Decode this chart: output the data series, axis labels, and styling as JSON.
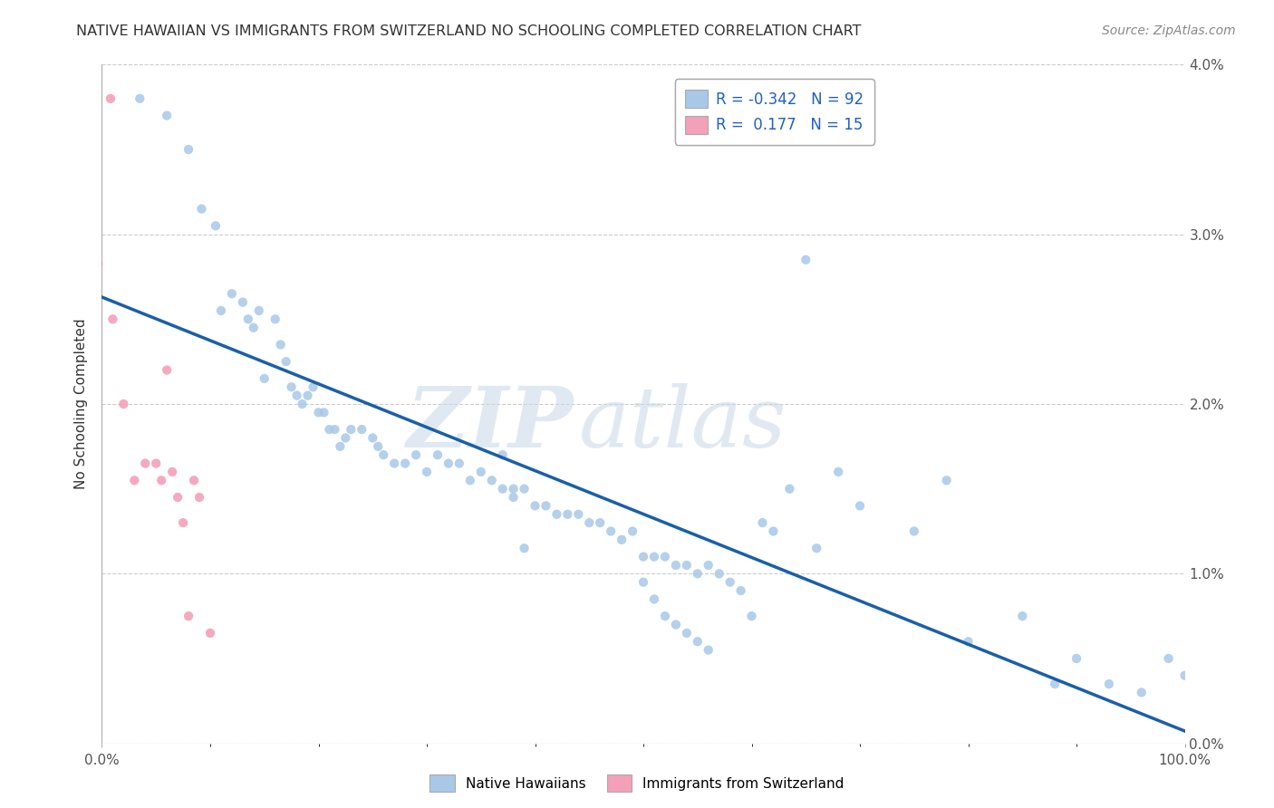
{
  "title": "NATIVE HAWAIIAN VS IMMIGRANTS FROM SWITZERLAND NO SCHOOLING COMPLETED CORRELATION CHART",
  "source": "Source: ZipAtlas.com",
  "ylabel": "No Schooling Completed",
  "legend_label1": "Native Hawaiians",
  "legend_label2": "Immigrants from Switzerland",
  "R1": -0.342,
  "N1": 92,
  "R2": 0.177,
  "N2": 15,
  "color_blue": "#a8c8e8",
  "color_pink": "#f4a0b8",
  "color_trend_blue": "#1a5fa8",
  "color_trend_pink": "#e08090",
  "blue_x": [
    3.5,
    6.0,
    8.0,
    9.2,
    10.5,
    11.0,
    12.0,
    13.0,
    13.5,
    14.0,
    14.5,
    15.0,
    16.0,
    16.5,
    17.0,
    17.5,
    18.0,
    18.5,
    19.0,
    19.5,
    20.0,
    20.5,
    21.0,
    21.5,
    22.0,
    22.5,
    23.0,
    24.0,
    25.0,
    25.5,
    26.0,
    27.0,
    28.0,
    29.0,
    30.0,
    31.0,
    32.0,
    33.0,
    34.0,
    35.0,
    36.0,
    37.0,
    38.0,
    39.0,
    40.0,
    41.0,
    42.0,
    43.0,
    44.0,
    45.0,
    46.0,
    47.0,
    48.0,
    49.0,
    50.0,
    51.0,
    52.0,
    53.0,
    54.0,
    55.0,
    56.0,
    57.0,
    58.0,
    59.0,
    60.0,
    61.0,
    62.0,
    63.5,
    65.0,
    66.0,
    68.0,
    70.0,
    75.0,
    78.0,
    80.0,
    85.0,
    88.0,
    90.0,
    93.0,
    96.0,
    98.5,
    100.0,
    37.0,
    38.0,
    39.0,
    50.0,
    51.0,
    52.0,
    53.0,
    54.0,
    55.0,
    56.0
  ],
  "blue_y": [
    3.8,
    3.7,
    3.5,
    3.15,
    3.05,
    2.55,
    2.65,
    2.6,
    2.5,
    2.45,
    2.55,
    2.15,
    2.5,
    2.35,
    2.25,
    2.1,
    2.05,
    2.0,
    2.05,
    2.1,
    1.95,
    1.95,
    1.85,
    1.85,
    1.75,
    1.8,
    1.85,
    1.85,
    1.8,
    1.75,
    1.7,
    1.65,
    1.65,
    1.7,
    1.6,
    1.7,
    1.65,
    1.65,
    1.55,
    1.6,
    1.55,
    1.5,
    1.5,
    1.5,
    1.4,
    1.4,
    1.35,
    1.35,
    1.35,
    1.3,
    1.3,
    1.25,
    1.2,
    1.25,
    1.1,
    1.1,
    1.1,
    1.05,
    1.05,
    1.0,
    1.05,
    1.0,
    0.95,
    0.9,
    0.75,
    1.3,
    1.25,
    1.5,
    2.85,
    1.15,
    1.6,
    1.4,
    1.25,
    1.55,
    0.6,
    0.75,
    0.35,
    0.5,
    0.35,
    0.3,
    0.5,
    0.4,
    1.7,
    1.45,
    1.15,
    0.95,
    0.85,
    0.75,
    0.7,
    0.65,
    0.6,
    0.55
  ],
  "pink_x": [
    0.8,
    1.0,
    2.0,
    3.0,
    4.0,
    5.0,
    5.5,
    6.0,
    6.5,
    7.0,
    7.5,
    8.0,
    8.5,
    9.0,
    10.0
  ],
  "pink_y": [
    3.8,
    2.5,
    2.0,
    1.55,
    1.65,
    1.65,
    1.55,
    2.2,
    1.6,
    1.45,
    1.3,
    0.75,
    1.55,
    1.45,
    0.65
  ],
  "xmin": 0.0,
  "xmax": 100.0,
  "ymin": 0.0,
  "ymax": 4.0,
  "ytick_vals": [
    0.0,
    1.0,
    2.0,
    3.0,
    4.0
  ],
  "ytick_labels": [
    "0.0%",
    "1.0%",
    "2.0%",
    "3.0%",
    "4.0%"
  ],
  "xtick_positions": [
    0.0,
    100.0
  ],
  "xtick_labels": [
    "0.0%",
    "100.0%"
  ],
  "grid_color": "#cccccc",
  "background_color": "#ffffff"
}
